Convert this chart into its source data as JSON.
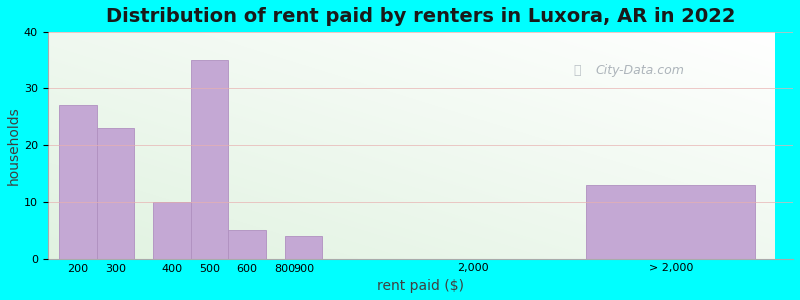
{
  "title": "Distribution of rent paid by renters in Luxora, AR in 2022",
  "xlabel": "rent paid ($)",
  "ylabel": "households",
  "background_color": "#00FFFF",
  "bar_color": "#c4a8d4",
  "bar_edge_color": "#b090c0",
  "categories": [
    "200",
    "300",
    "400",
    "500",
    "600",
    "800",
    "900",
    "2,000",
    "> 2,000"
  ],
  "values": [
    27,
    23,
    10,
    35,
    5,
    0,
    4,
    0,
    13
  ],
  "ylim": [
    0,
    40
  ],
  "yticks": [
    0,
    10,
    20,
    30,
    40
  ],
  "title_fontsize": 14,
  "axis_label_fontsize": 10,
  "tick_fontsize": 8,
  "watermark_text": "City-Data.com"
}
